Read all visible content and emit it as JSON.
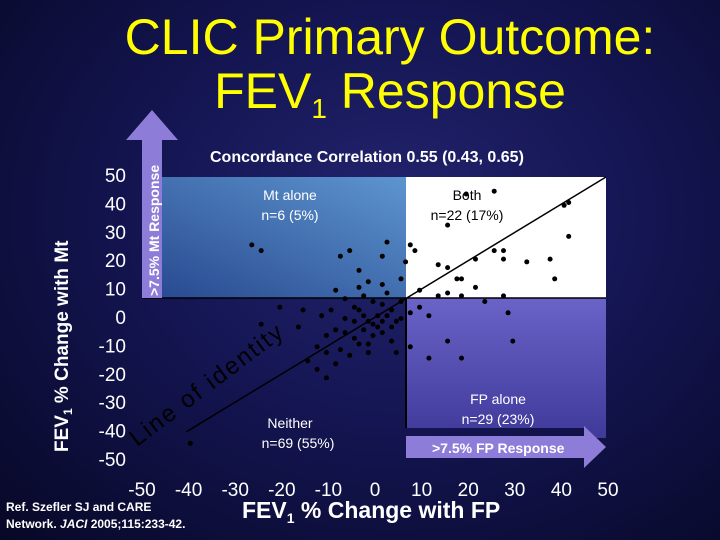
{
  "title": {
    "line1": "CLIC Primary Outcome:",
    "line2_pre": "FEV",
    "line2_sub": "1",
    "line2_post": " Response"
  },
  "concordance": "Concordance Correlation 0.55 (0.43, 0.65)",
  "quadrants": {
    "mt_alone": {
      "label": "Mt alone",
      "n": "n=6 (5%)"
    },
    "both": {
      "label": "Both",
      "n": "n=22 (17%)"
    },
    "neither": {
      "label": "Neither",
      "n": "n=69 (55%)"
    },
    "fp_alone": {
      "label": "FP alone",
      "n": "n=29 (23%)"
    }
  },
  "arrows": {
    "mt_response": ">7.5% Mt Response",
    "fp_response": ">7.5% FP Response"
  },
  "line_of_identity": "Line of identity",
  "reference": {
    "line1": "Ref. Szefler SJ and CARE",
    "line2_pre": "Network. ",
    "line2_journal": "JACI",
    "line2_post": " 2005;115:233-42."
  },
  "xlabel": {
    "pre": "FEV",
    "sub": "1",
    "post": " % Change with FP"
  },
  "ylabel": {
    "pre": "FEV",
    "sub": "1",
    "post": " % Change with Mt"
  },
  "colors": {
    "title": "#ffff00",
    "mt_region": "#2f68b3",
    "fp_region": "#5b52b8",
    "both_region": "#ffffff",
    "background": "#141552"
  },
  "chart_data": {
    "type": "scatter",
    "x_ticks": [
      -50,
      -40,
      -30,
      -20,
      -10,
      0,
      10,
      20,
      30,
      40,
      50
    ],
    "y_ticks": [
      50,
      40,
      30,
      20,
      10,
      0,
      -10,
      -20,
      -30,
      -40,
      -50
    ],
    "xlim": [
      -50,
      50
    ],
    "ylim": [
      -50,
      50
    ],
    "threshold": 7.5,
    "identity_line": true,
    "points": [
      [
        -39.2,
        -44.1
      ],
      [
        20,
        44
      ],
      [
        26,
        45
      ],
      [
        41,
        40
      ],
      [
        16,
        33
      ],
      [
        42,
        41
      ],
      [
        42,
        29
      ],
      [
        3,
        27
      ],
      [
        8,
        26
      ],
      [
        9,
        24
      ],
      [
        26,
        24
      ],
      [
        28,
        24
      ],
      [
        -26,
        26
      ],
      [
        -24,
        24
      ],
      [
        -7,
        22
      ],
      [
        -5,
        24
      ],
      [
        2,
        22
      ],
      [
        7,
        20
      ],
      [
        14,
        19
      ],
      [
        16,
        18
      ],
      [
        19,
        14
      ],
      [
        22,
        21
      ],
      [
        28,
        21
      ],
      [
        33,
        20
      ],
      [
        38,
        21
      ],
      [
        39,
        14
      ],
      [
        18,
        14
      ],
      [
        -3,
        17
      ],
      [
        -1,
        13
      ],
      [
        2,
        12
      ],
      [
        6,
        14
      ],
      [
        10,
        10
      ],
      [
        14,
        8
      ],
      [
        16,
        9
      ],
      [
        19,
        8
      ],
      [
        22,
        11
      ],
      [
        24,
        6
      ],
      [
        28,
        8
      ],
      [
        29,
        2
      ],
      [
        -20,
        4
      ],
      [
        -8,
        10
      ],
      [
        -6,
        7
      ],
      [
        -4,
        4
      ],
      [
        -2,
        8
      ],
      [
        0,
        6
      ],
      [
        2,
        5
      ],
      [
        3,
        9
      ],
      [
        4,
        3
      ],
      [
        6,
        6
      ],
      [
        8,
        2
      ],
      [
        10,
        4
      ],
      [
        12,
        1
      ],
      [
        -6,
        0
      ],
      [
        -4,
        -1
      ],
      [
        -2,
        1
      ],
      [
        0,
        -2
      ],
      [
        2,
        -1
      ],
      [
        4,
        -3
      ],
      [
        6,
        0
      ],
      [
        -10,
        -6
      ],
      [
        -8,
        -4
      ],
      [
        -6,
        -5
      ],
      [
        -4,
        -7
      ],
      [
        -2,
        -4
      ],
      [
        0,
        -6
      ],
      [
        2,
        -5
      ],
      [
        4,
        -8
      ],
      [
        -12,
        -10
      ],
      [
        -10,
        -12
      ],
      [
        -7,
        -11
      ],
      [
        -5,
        -13
      ],
      [
        -3,
        -9
      ],
      [
        -14,
        -15
      ],
      [
        -12,
        -18
      ],
      [
        -10,
        -21
      ],
      [
        -8,
        -16
      ],
      [
        5,
        -12
      ],
      [
        8,
        -10
      ],
      [
        12,
        -14
      ],
      [
        19,
        -14
      ],
      [
        16,
        -8
      ],
      [
        30,
        -8
      ],
      [
        -1,
        -1
      ],
      [
        1,
        1
      ],
      [
        -3,
        3
      ],
      [
        1,
        -3
      ],
      [
        3,
        1
      ],
      [
        5,
        -1
      ],
      [
        -1,
        -9
      ],
      [
        -16,
        -3
      ],
      [
        -24,
        -2
      ],
      [
        -15,
        3
      ],
      [
        -9,
        3
      ],
      [
        -11,
        1
      ],
      [
        -1,
        -12
      ],
      [
        -3,
        11
      ]
    ]
  }
}
